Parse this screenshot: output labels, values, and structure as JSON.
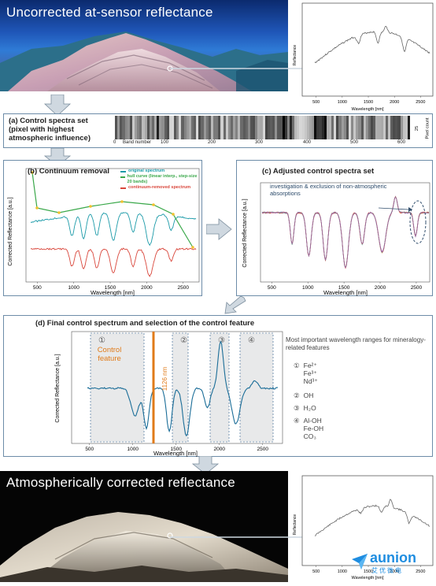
{
  "top": {
    "title": "Uncorrected at-sensor reflectance",
    "plot": {
      "ylabel": "Reflectance",
      "xlabel": "Wavelength [nm]",
      "xticks": [
        "500",
        "1000",
        "1500",
        "2000",
        "2500"
      ]
    }
  },
  "panel_a": {
    "title_line1": "(a) Control spectra set",
    "title_line2": "(pixel with highest",
    "title_line3": "atmospheric influence)",
    "band_label": "Band number",
    "ticks": [
      "0",
      "100",
      "200",
      "300",
      "400",
      "500",
      "600"
    ],
    "pixel_count_label": "Pixel count",
    "pixel_count_value": "25"
  },
  "panel_b": {
    "title": "(b) Continuum removal",
    "ylabel": "Corrected Reflectance [a.u.]",
    "xlabel": "Wavelength [nm]",
    "xticks": [
      "500",
      "1000",
      "1500",
      "2000",
      "2500"
    ],
    "legend": [
      {
        "label": "original spectrum",
        "color": "#1a9aa8"
      },
      {
        "label": "hull curve (linear interp., step-size 20 bands)",
        "color": "#3aa84a"
      },
      {
        "label": "continuum-removed spectrum",
        "color": "#d9463b"
      }
    ]
  },
  "panel_c": {
    "title": "(c) Adjusted control spectra set",
    "annotation": "investigation & exclusion of non-atmospheric absorptions",
    "ylabel": "Corrected Reflectance [a.u.]",
    "xlabel": "Wavelength [nm]",
    "xticks": [
      "500",
      "1000",
      "1500",
      "2000",
      "2500"
    ]
  },
  "panel_d": {
    "title": "(d) Final control spectrum and selection of the control feature",
    "control_feature": "Control feature",
    "feature_nm": "1126 nm",
    "ylabel": "Corrected Reflectance [a.u.]",
    "xlabel": "Wavelength [nm]",
    "xticks": [
      "500",
      "1000",
      "1500",
      "2000",
      "2500"
    ],
    "regions": [
      "①",
      "②",
      "③",
      "④"
    ],
    "ranges_title": "Most important wavelength ranges for mineralogy-related features",
    "ranges": [
      {
        "num": "①",
        "items": [
          "Fe²⁺",
          "Fe³⁺",
          "Nd³⁺"
        ]
      },
      {
        "num": "②",
        "items": [
          "OH"
        ]
      },
      {
        "num": "③",
        "items": [
          "H₂O"
        ]
      },
      {
        "num": "④",
        "items": [
          "Al-OH",
          "Fe-OH",
          "CO₃"
        ]
      }
    ]
  },
  "bottom": {
    "title": "Atmospherically corrected reflectance",
    "plot": {
      "ylabel": "Reflectance",
      "xlabel": "Wavelength [nm]",
      "xticks": [
        "500",
        "1000",
        "1500",
        "2000",
        "2500"
      ]
    }
  },
  "logo": {
    "text": "aunion",
    "subtext": "艾优微电"
  },
  "colors": {
    "frame": "#6d8ca8",
    "arrow": "#c9d3dc",
    "control_line": "#e07b1a"
  }
}
